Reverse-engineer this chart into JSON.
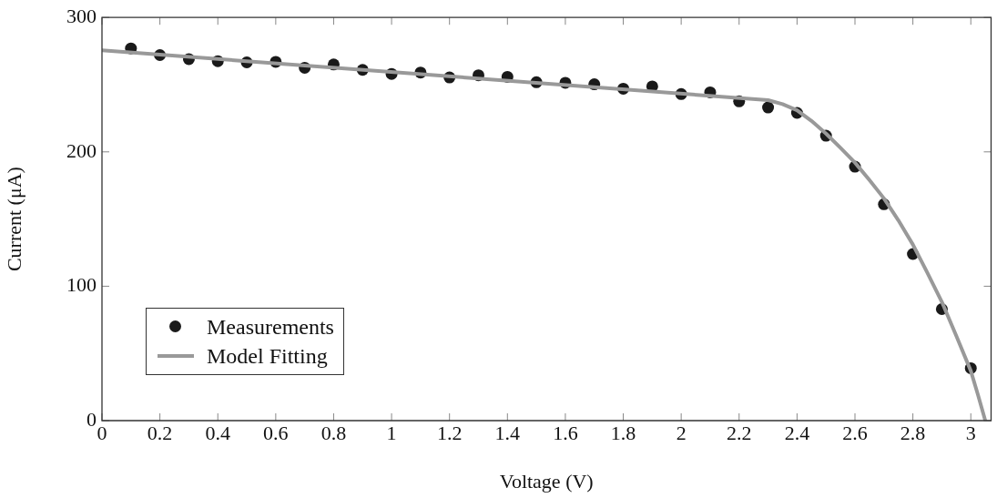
{
  "chart_data": {
    "type": "scatter",
    "xlabel": "Voltage (V)",
    "ylabel": "Current (μA)",
    "xlim": [
      0,
      3.07
    ],
    "xticks": [
      0,
      0.2,
      0.4,
      0.6,
      0.8,
      1,
      1.2,
      1.4,
      1.6,
      1.8,
      2,
      2.2,
      2.4,
      2.6,
      2.8,
      3
    ],
    "ylim": [
      0,
      300
    ],
    "yticks": [
      0,
      100,
      200,
      300
    ],
    "grid": false,
    "legend": "bottom left",
    "marker": "circle",
    "series": [
      {
        "name": "Measurements",
        "color": "#1a1a1a",
        "x": [
          0.1,
          0.2,
          0.3,
          0.4,
          0.5,
          0.6,
          0.7,
          0.8,
          0.9,
          1,
          1.1,
          1.2,
          1.3,
          1.4,
          1.5,
          1.6,
          1.7,
          1.8,
          1.9,
          2,
          2.1,
          2.2,
          2.3,
          2.4,
          2.5,
          2.6,
          2.7,
          2.8,
          2.9,
          3
        ],
        "values": [
          277,
          272,
          269,
          267.5,
          266.6,
          267,
          262.6,
          265,
          261,
          258,
          259,
          255.4,
          257,
          255.8,
          251.8,
          251.4,
          250.3,
          247,
          248.7,
          243,
          244.3,
          237.6,
          233,
          229,
          212,
          189,
          161,
          124,
          83,
          39
        ]
      },
      {
        "name": "Model Fitting",
        "type": "line",
        "color": "#999999",
        "marker": "none",
        "line_style": "solid",
        "x": [
          0,
          2.3,
          2.35,
          2.4,
          2.45,
          2.5,
          2.55,
          2.6,
          2.65,
          2.7,
          2.75,
          2.8,
          2.85,
          2.9,
          2.95,
          3,
          3.025,
          3.05
        ],
        "values": [
          275.5,
          238.5,
          235.5,
          231,
          223,
          213.6,
          203,
          192,
          179,
          165.4,
          149,
          131,
          110,
          88.4,
          63,
          37,
          19,
          0
        ]
      }
    ]
  }
}
